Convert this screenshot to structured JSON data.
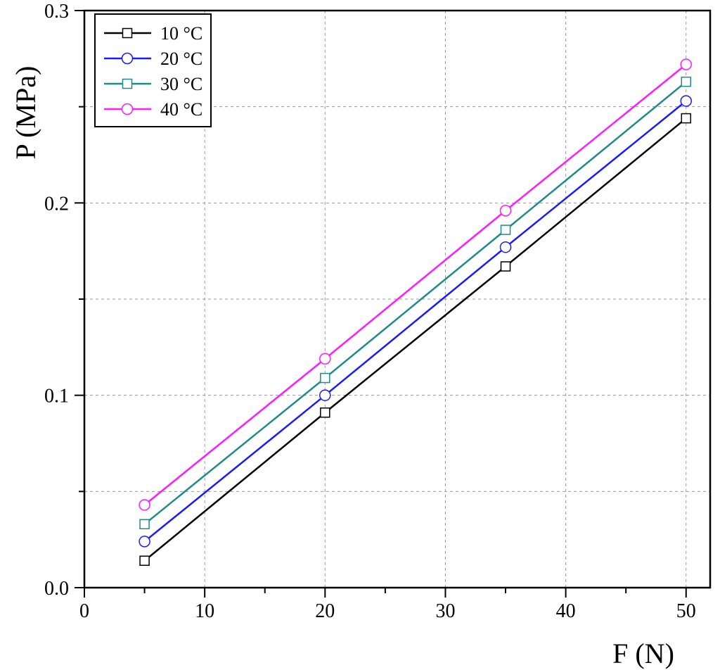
{
  "chart_data": {
    "type": "line",
    "xlabel": "F (N)",
    "ylabel": "P (MPa)",
    "xlim": [
      0,
      52
    ],
    "ylim": [
      0,
      0.3
    ],
    "x_ticks": [
      0,
      10,
      20,
      30,
      40,
      50
    ],
    "x_tick_labels": [
      "0",
      "10",
      "20",
      "30",
      "40",
      "50"
    ],
    "y_ticks": [
      0,
      0.1,
      0.2,
      0.3
    ],
    "y_tick_labels": [
      "0.0",
      "0.1",
      "0.2",
      "0.3"
    ],
    "grid": true,
    "legend_position": "top-left",
    "series": [
      {
        "name": "10 °C",
        "x": [
          5,
          20,
          35,
          50
        ],
        "y": [
          0.014,
          0.091,
          0.167,
          0.244
        ],
        "color": "#000000",
        "marker": "square"
      },
      {
        "name": "20 °C",
        "x": [
          5,
          20,
          35,
          50
        ],
        "y": [
          0.024,
          0.1,
          0.177,
          0.253
        ],
        "color": "#1a1aff",
        "marker": "circle"
      },
      {
        "name": "30 °C",
        "x": [
          5,
          20,
          35,
          50
        ],
        "y": [
          0.033,
          0.109,
          0.186,
          0.263
        ],
        "color": "#1f8a8a",
        "marker": "square"
      },
      {
        "name": "40 °C",
        "x": [
          5,
          20,
          35,
          50
        ],
        "y": [
          0.043,
          0.119,
          0.196,
          0.272
        ],
        "color": "#ff1aff",
        "marker": "circle"
      }
    ]
  }
}
